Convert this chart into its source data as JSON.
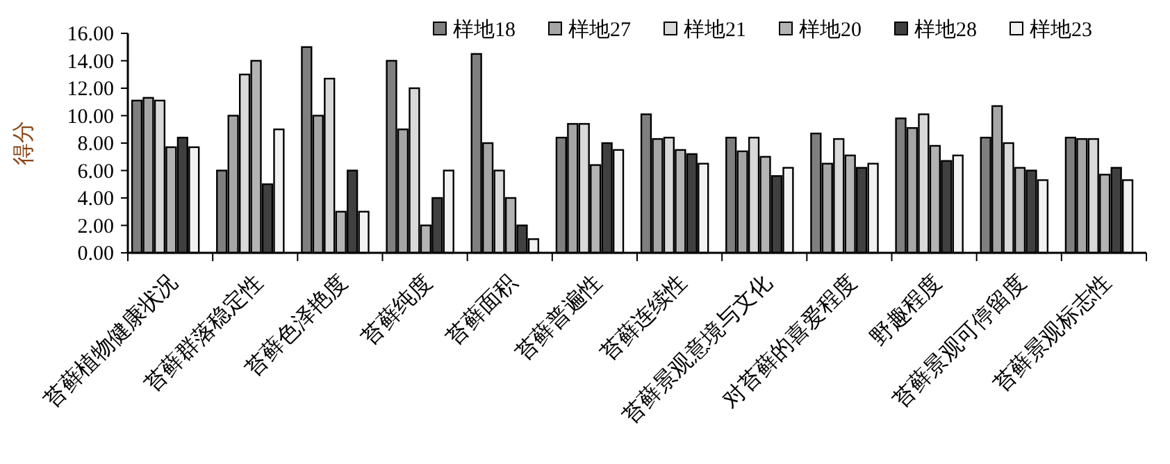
{
  "chart_data": {
    "type": "bar",
    "ylabel": "得分",
    "categories": [
      "苔藓植物健康状况",
      "苔藓群落稳定性",
      "苔藓色泽艳度",
      "苔藓纯度",
      "苔藓面积",
      "苔藓普遍性",
      "苔藓连续性",
      "苔藓景观意境与文化",
      "对苔藓的喜爱程度",
      "野趣程度",
      "苔藓景观可停留度",
      "苔藓景观标志性"
    ],
    "series": [
      {
        "name": "样地18",
        "color": "#7f7f7f",
        "values": [
          11.1,
          6.0,
          15.0,
          14.0,
          14.5,
          8.4,
          10.1,
          8.4,
          8.7,
          9.8,
          8.4,
          8.4
        ]
      },
      {
        "name": "样地27",
        "color": "#a6a6a6",
        "values": [
          11.3,
          10.0,
          10.0,
          9.0,
          8.0,
          9.4,
          8.3,
          7.4,
          6.5,
          9.1,
          10.7,
          8.3
        ]
      },
      {
        "name": "样地21",
        "color": "#d9d9d9",
        "values": [
          11.1,
          13.0,
          12.7,
          12.0,
          6.0,
          9.4,
          8.4,
          8.4,
          8.3,
          10.1,
          8.0,
          8.3
        ]
      },
      {
        "name": "样地20",
        "color": "#b3b3b3",
        "values": [
          7.7,
          14.0,
          3.0,
          2.0,
          4.0,
          6.4,
          7.5,
          7.0,
          7.1,
          7.8,
          6.2,
          5.7
        ]
      },
      {
        "name": "样地28",
        "color": "#404040",
        "values": [
          8.4,
          5.0,
          6.0,
          4.0,
          2.0,
          8.0,
          7.2,
          5.6,
          6.2,
          6.7,
          6.0,
          6.2
        ]
      },
      {
        "name": "样地23",
        "color": "#f2f2f2",
        "values": [
          7.7,
          9.0,
          3.0,
          6.0,
          1.0,
          7.5,
          6.5,
          6.2,
          6.5,
          7.1,
          5.3,
          5.3
        ]
      }
    ],
    "ylim": [
      0,
      16
    ],
    "yticks": [
      {
        "value": 0,
        "label": "0.00"
      },
      {
        "value": 2,
        "label": "2.00"
      },
      {
        "value": 4,
        "label": "4.00"
      },
      {
        "value": 6,
        "label": "6.00"
      },
      {
        "value": 8,
        "label": "8.00"
      },
      {
        "value": 10,
        "label": "10.00"
      },
      {
        "value": 12,
        "label": "12.00"
      },
      {
        "value": 14,
        "label": "14.00"
      },
      {
        "value": 16,
        "label": "16.00"
      }
    ],
    "grid": false,
    "legend": "top right"
  }
}
